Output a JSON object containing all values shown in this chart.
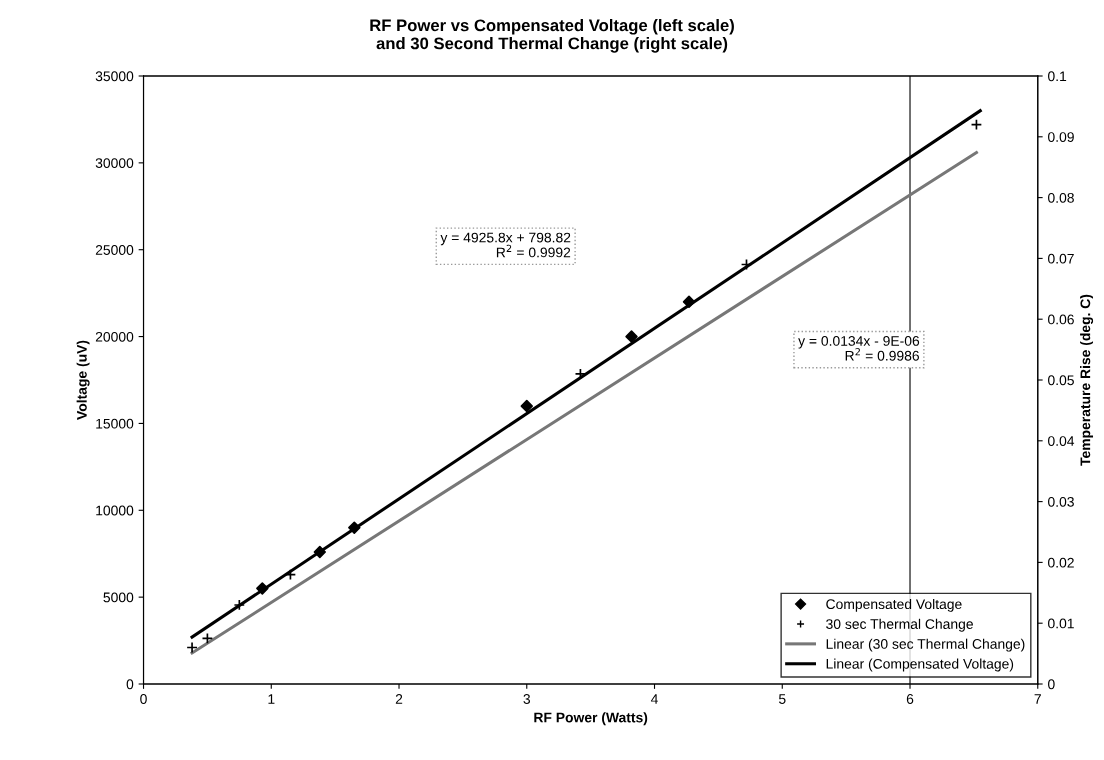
{
  "chart_data": {
    "type": "scatter",
    "title": "RF Power vs Compensated Voltage (left scale)\nand 30 Second Thermal Change (right scale)",
    "xlabel": "RF Power (Watts)",
    "ylabel": "Voltage (uV)",
    "y2label": "Temperature Rise (deg. C)",
    "xlim": [
      0,
      7
    ],
    "xticks": [
      0,
      1,
      2,
      3,
      4,
      5,
      6,
      7
    ],
    "ylim": [
      0,
      35000
    ],
    "yticks": [
      0,
      5000,
      10000,
      15000,
      20000,
      25000,
      30000,
      35000
    ],
    "y2lim": [
      0,
      0.1
    ],
    "y2ticks": [
      0,
      0.01,
      0.02,
      0.03,
      0.04,
      0.05,
      0.06,
      0.07,
      0.08,
      0.09,
      0.1
    ],
    "grid": false,
    "legend": "bottom right",
    "series": [
      {
        "name": "Compensated Voltage",
        "marker": "diamond",
        "color": "#000000",
        "x": [
          0.93,
          1.38,
          1.65,
          3.0,
          3.82,
          4.27
        ],
        "values": [
          5500,
          7600,
          9000,
          16000,
          20000,
          22000
        ]
      },
      {
        "name": "30 sec Thermal Change",
        "marker": "cross",
        "axis": "y2",
        "color": "#000000",
        "x": [
          0.38,
          0.5,
          0.75,
          1.15,
          3.42,
          4.72,
          6.52
        ],
        "values": [
          0.006,
          0.0075,
          0.013,
          0.018,
          0.051,
          0.069,
          0.092
        ]
      },
      {
        "name": "Linear (30 sec Thermal Change)",
        "type": "line",
        "axis": "y2",
        "color": "#777777",
        "x": [
          0.38,
          6.52
        ],
        "values": [
          0.0051,
          0.0874
        ]
      },
      {
        "name": "Linear (Compensated Voltage)",
        "type": "line",
        "color": "#000000",
        "x": [
          0.38,
          6.55
        ],
        "values": [
          2700,
          33000
        ]
      }
    ],
    "ref_lines": [
      {
        "axis": "x",
        "value": 6,
        "color": "#000000"
      }
    ],
    "annotations": [
      "y = 4925.8x + 798.82\nR$^{2}$ = 0.9992",
      "y = 0.0134x - 9E-06\nR$^{2}$ = 0.9986"
    ]
  }
}
